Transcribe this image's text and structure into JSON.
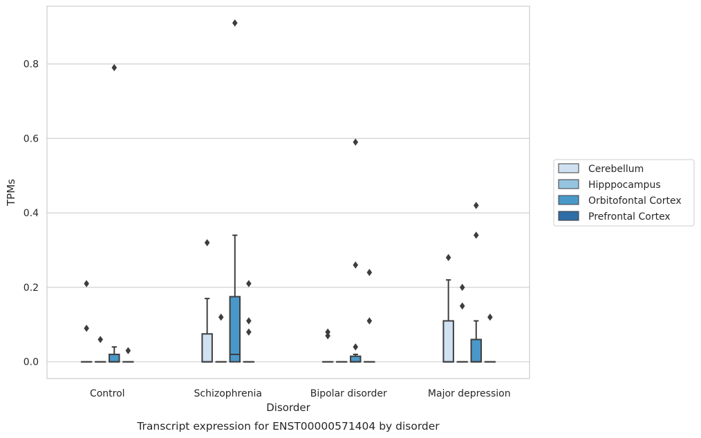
{
  "chart_data": {
    "type": "box",
    "title": "",
    "caption": "Transcript expression for ENST00000571404 by disorder",
    "xlabel": "Disorder",
    "ylabel": "TPMs",
    "ylim": [
      -0.045,
      0.955
    ],
    "yticks": [
      0.0,
      0.2,
      0.4,
      0.6,
      0.8
    ],
    "ytick_labels": [
      "0.0",
      "0.2",
      "0.4",
      "0.6",
      "0.8"
    ],
    "categories": [
      "Control",
      "Schizophrenia",
      "Bipolar disorder",
      "Major depression"
    ],
    "grid": "horizontal",
    "legend_position": "right",
    "series": [
      {
        "name": "Cerebellum",
        "color": "#d0e1f2",
        "boxes": [
          {
            "q1": 0,
            "median": 0,
            "q3": 0,
            "whisker_low": 0,
            "whisker_high": 0,
            "outliers": [
              0.21,
              0.09
            ]
          },
          {
            "q1": 0,
            "median": 0,
            "q3": 0.075,
            "whisker_low": 0,
            "whisker_high": 0.17,
            "outliers": [
              0.32
            ]
          },
          {
            "q1": 0,
            "median": 0,
            "q3": 0,
            "whisker_low": 0,
            "whisker_high": 0,
            "outliers": [
              0.08,
              0.07
            ]
          },
          {
            "q1": 0,
            "median": 0,
            "q3": 0.11,
            "whisker_low": 0,
            "whisker_high": 0.22,
            "outliers": [
              0.28
            ]
          }
        ]
      },
      {
        "name": "Hipppocampus",
        "color": "#94c4df",
        "boxes": [
          {
            "q1": 0,
            "median": 0,
            "q3": 0,
            "whisker_low": 0,
            "whisker_high": 0,
            "outliers": [
              0.06
            ]
          },
          {
            "q1": 0,
            "median": 0,
            "q3": 0,
            "whisker_low": 0,
            "whisker_high": 0,
            "outliers": [
              0.12
            ]
          },
          {
            "q1": 0,
            "median": 0,
            "q3": 0,
            "whisker_low": 0,
            "whisker_high": 0,
            "outliers": []
          },
          {
            "q1": 0,
            "median": 0,
            "q3": 0,
            "whisker_low": 0,
            "whisker_high": 0,
            "outliers": [
              0.2,
              0.15
            ]
          }
        ]
      },
      {
        "name": "Orbitofontal Cortex",
        "color": "#4a98c9",
        "boxes": [
          {
            "q1": 0,
            "median": 0,
            "q3": 0.02,
            "whisker_low": 0,
            "whisker_high": 0.04,
            "outliers": [
              0.79
            ]
          },
          {
            "q1": 0,
            "median": 0.02,
            "q3": 0.175,
            "whisker_low": 0,
            "whisker_high": 0.34,
            "outliers": [
              0.91
            ]
          },
          {
            "q1": 0,
            "median": 0,
            "q3": 0.015,
            "whisker_low": 0,
            "whisker_high": 0.02,
            "outliers": [
              0.59,
              0.26,
              0.04
            ]
          },
          {
            "q1": 0,
            "median": 0,
            "q3": 0.06,
            "whisker_low": 0,
            "whisker_high": 0.11,
            "outliers": [
              0.42,
              0.34
            ]
          }
        ]
      },
      {
        "name": "Prefrontal Cortex",
        "color": "#2e6da7",
        "boxes": [
          {
            "q1": 0,
            "median": 0,
            "q3": 0,
            "whisker_low": 0,
            "whisker_high": 0,
            "outliers": [
              0.03
            ]
          },
          {
            "q1": 0,
            "median": 0,
            "q3": 0,
            "whisker_low": 0,
            "whisker_high": 0,
            "outliers": [
              0.21,
              0.11,
              0.08
            ]
          },
          {
            "q1": 0,
            "median": 0,
            "q3": 0,
            "whisker_low": 0,
            "whisker_high": 0,
            "outliers": [
              0.24,
              0.11
            ]
          },
          {
            "q1": 0,
            "median": 0,
            "q3": 0,
            "whisker_low": 0,
            "whisker_high": 0,
            "outliers": [
              0.12
            ]
          }
        ]
      }
    ]
  }
}
